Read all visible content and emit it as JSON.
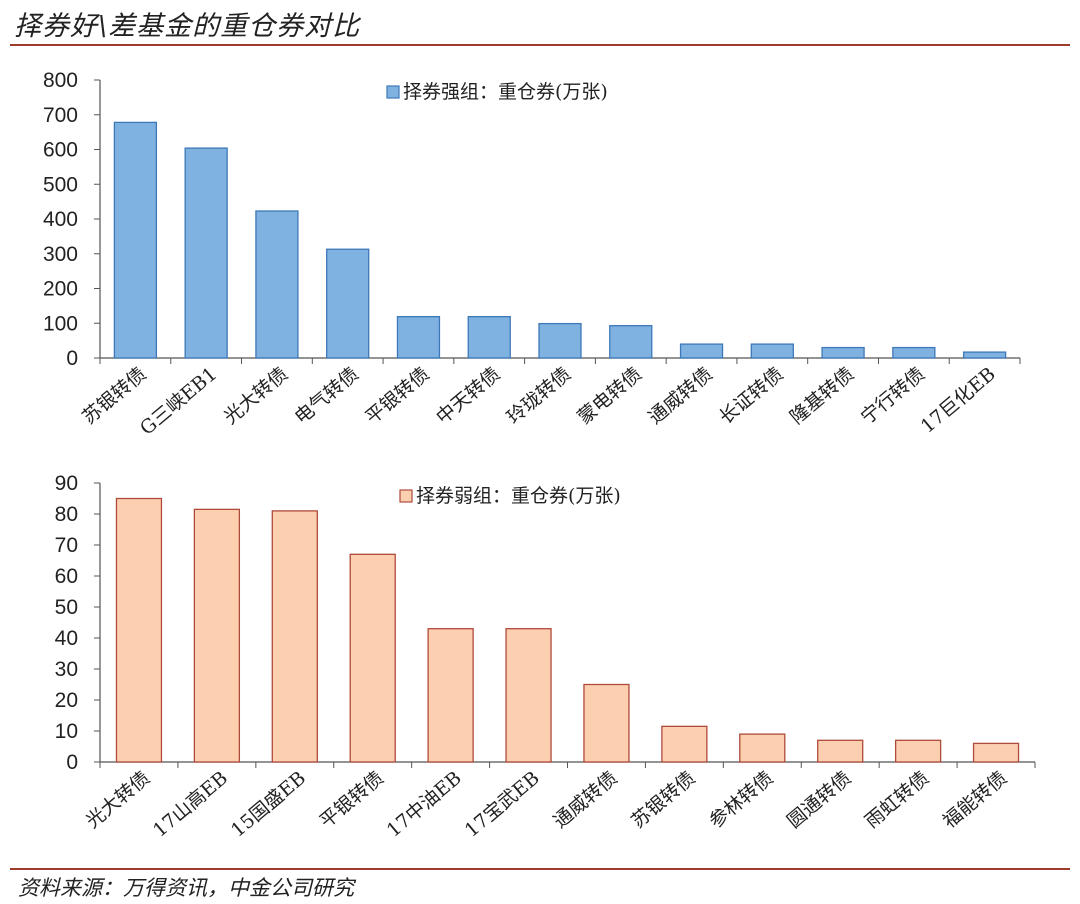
{
  "header": {
    "title": "择券好\\差基金的重仓券对比"
  },
  "footer": {
    "source": "资料来源：万得资讯，中金公司研究"
  },
  "colors": {
    "rule": "#9c3b2b",
    "chart1_fill": "#7fb2e0",
    "chart1_stroke": "#3e78b8",
    "chart2_fill": "#fccfb1",
    "chart2_stroke": "#b04a3a"
  },
  "chart_data": [
    {
      "type": "bar",
      "legend": "择券强组：重仓券(万张)",
      "legend_position": "top-center",
      "categories": [
        "苏银转债",
        "G三峡EB1",
        "光大转债",
        "电气转债",
        "平银转债",
        "中天转债",
        "玲珑转债",
        "蒙电转债",
        "通威转债",
        "长证转债",
        "隆基转债",
        "宁行转债",
        "17巨化EB"
      ],
      "values": [
        678,
        604,
        423,
        313,
        119,
        119,
        99,
        93,
        40,
        40,
        30,
        30,
        17
      ],
      "ylim": [
        0,
        800
      ],
      "yticks": [
        "0",
        "100",
        "200",
        "300",
        "400",
        "500",
        "600",
        "700",
        "800"
      ],
      "grid": false
    },
    {
      "type": "bar",
      "legend": "择券弱组：重仓券(万张)",
      "legend_position": "top-center",
      "categories": [
        "光大转债",
        "17山高EB",
        "15国盛EB",
        "平银转债",
        "17中油EB",
        "17宝武EB",
        "通威转债",
        "苏银转债",
        "参林转债",
        "圆通转债",
        "雨虹转债",
        "福能转债"
      ],
      "values": [
        85,
        81.5,
        81,
        67,
        43,
        43,
        25,
        11.5,
        9,
        7,
        7,
        6
      ],
      "ylim": [
        0,
        90
      ],
      "yticks": [
        "0",
        "10",
        "20",
        "30",
        "40",
        "50",
        "60",
        "70",
        "80",
        "90"
      ],
      "grid": false
    }
  ]
}
